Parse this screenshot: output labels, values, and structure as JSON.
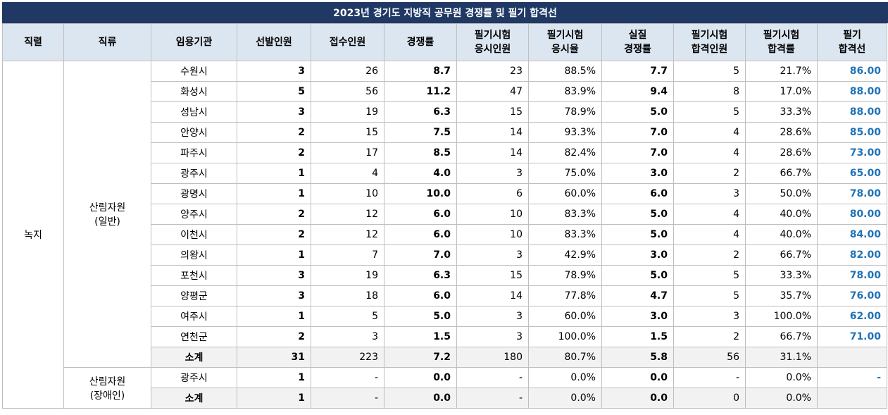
{
  "title": "2023년 경기도 지방직 공무원 경쟁률 및 필기 합격선",
  "headers": [
    "직렬",
    "직류",
    "임용기관",
    "선발인원",
    "접수인원",
    "경쟁률",
    "필기시험\n응시인원",
    "필기시험\n응시율",
    "실질\n경쟁률",
    "필기시험\n합격인원",
    "필기시험\n합격률",
    "필기\n합격선"
  ],
  "group1": {
    "series": "녹지",
    "kind": "산림자원\n(일반)"
  },
  "rows": [
    [
      "수원시",
      "3",
      "26",
      "8.7",
      "23",
      "88.5%",
      "7.7",
      "5",
      "21.7%",
      "86.00"
    ],
    [
      "화성시",
      "5",
      "56",
      "11.2",
      "47",
      "83.9%",
      "9.4",
      "8",
      "17.0%",
      "88.00"
    ],
    [
      "성남시",
      "3",
      "19",
      "6.3",
      "15",
      "78.9%",
      "5.0",
      "5",
      "33.3%",
      "88.00"
    ],
    [
      "안양시",
      "2",
      "15",
      "7.5",
      "14",
      "93.3%",
      "7.0",
      "4",
      "28.6%",
      "85.00"
    ],
    [
      "파주시",
      "2",
      "17",
      "8.5",
      "14",
      "82.4%",
      "7.0",
      "4",
      "28.6%",
      "73.00"
    ],
    [
      "광주시",
      "1",
      "4",
      "4.0",
      "3",
      "75.0%",
      "3.0",
      "2",
      "66.7%",
      "65.00"
    ],
    [
      "광명시",
      "1",
      "10",
      "10.0",
      "6",
      "60.0%",
      "6.0",
      "3",
      "50.0%",
      "78.00"
    ],
    [
      "양주시",
      "2",
      "12",
      "6.0",
      "10",
      "83.3%",
      "5.0",
      "4",
      "40.0%",
      "80.00"
    ],
    [
      "이천시",
      "2",
      "12",
      "6.0",
      "10",
      "83.3%",
      "5.0",
      "4",
      "40.0%",
      "84.00"
    ],
    [
      "의왕시",
      "1",
      "7",
      "7.0",
      "3",
      "42.9%",
      "3.0",
      "2",
      "66.7%",
      "82.00"
    ],
    [
      "포천시",
      "3",
      "19",
      "6.3",
      "15",
      "78.9%",
      "5.0",
      "5",
      "33.3%",
      "78.00"
    ],
    [
      "양평군",
      "3",
      "18",
      "6.0",
      "14",
      "77.8%",
      "4.7",
      "5",
      "35.7%",
      "76.00"
    ],
    [
      "여주시",
      "1",
      "5",
      "5.0",
      "3",
      "60.0%",
      "3.0",
      "3",
      "100.0%",
      "62.00"
    ],
    [
      "연천군",
      "2",
      "3",
      "1.5",
      "3",
      "100.0%",
      "1.5",
      "2",
      "66.7%",
      "71.00"
    ]
  ],
  "subtotal1": [
    "소계",
    "31",
    "223",
    "7.2",
    "180",
    "80.7%",
    "5.8",
    "56",
    "31.1%",
    ""
  ],
  "group2": {
    "kind": "산림자원\n(장애인)"
  },
  "rows2": [
    [
      "광주시",
      "1",
      "-",
      "0.0",
      "-",
      "0.0%",
      "0.0",
      "-",
      "0.0%",
      "-"
    ]
  ],
  "subtotal2": [
    "소계",
    "1",
    "-",
    "0.0",
    "-",
    "0.0%",
    "0.0",
    "0",
    "0.0%",
    ""
  ]
}
